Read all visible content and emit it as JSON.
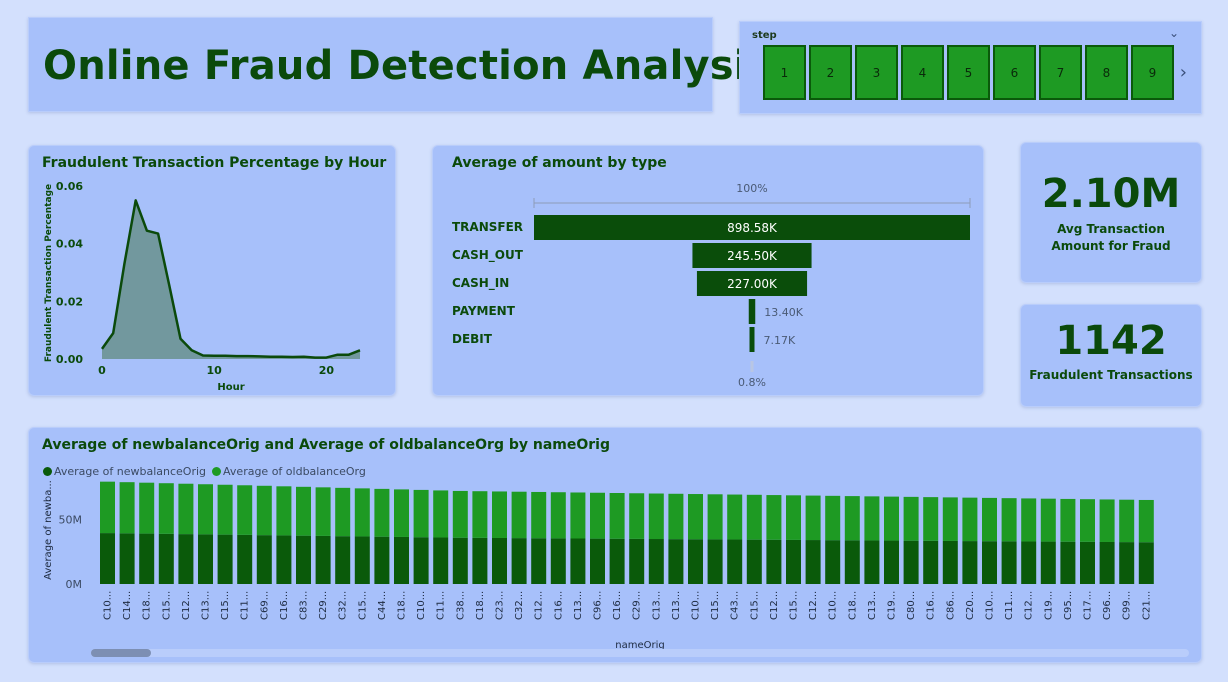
{
  "header": {
    "title": "Online Fraud Detection Analysis"
  },
  "slicer": {
    "label": "step",
    "items": [
      "1",
      "2",
      "3",
      "4",
      "5",
      "6",
      "7",
      "8",
      "9"
    ],
    "chevron_icon": "chevron-down-icon",
    "next_icon": "chevron-right-icon"
  },
  "kpis": {
    "avg_amount": {
      "value": "2.10M",
      "label": "Avg Transaction Amount for Fraud"
    },
    "fraud_count": {
      "value": "1142",
      "label": "Fraudulent Transactions"
    }
  },
  "colors": {
    "dark_green": "#0b4a0b",
    "mid_green": "#1e9a23",
    "line_fill": "#6d9394",
    "card_bg": "#a7c0fa"
  },
  "chart_data": [
    {
      "type": "area",
      "title": "Fraudulent Transaction Percentage by Hour",
      "xlabel": "Hour",
      "ylabel": "Fraudulent Transaction Percentage",
      "xlim": [
        0,
        23
      ],
      "ylim": [
        0,
        0.06
      ],
      "xticks": [
        "0",
        "10",
        "20"
      ],
      "yticks": [
        "0.00",
        "0.02",
        "0.04",
        "0.06"
      ],
      "x": [
        0,
        1,
        2,
        3,
        4,
        5,
        6,
        7,
        8,
        9,
        10,
        11,
        12,
        13,
        14,
        15,
        16,
        17,
        18,
        19,
        20,
        21,
        22,
        23
      ],
      "values": [
        0.0035,
        0.009,
        0.033,
        0.055,
        0.0445,
        0.0435,
        0.0255,
        0.007,
        0.003,
        0.0012,
        0.0011,
        0.0011,
        0.001,
        0.001,
        0.0009,
        0.0008,
        0.0008,
        0.0007,
        0.0008,
        0.0005,
        0.0005,
        0.0015,
        0.0015,
        0.003
      ]
    },
    {
      "type": "bar",
      "subtype": "funnel",
      "title": "Average of amount by type",
      "top_label": "100%",
      "bottom_label": "0.8%",
      "categories": [
        "TRANSFER",
        "CASH_OUT",
        "CASH_IN",
        "PAYMENT",
        "DEBIT"
      ],
      "values": [
        898580,
        245500,
        227000,
        13400,
        7170
      ],
      "data_labels": [
        "898.58K",
        "245.50K",
        "227.00K",
        "13.40K",
        "7.17K"
      ]
    },
    {
      "type": "bar",
      "subtype": "stacked",
      "title": "Average of newbalanceOrig and Average of oldbalanceOrg by nameOrig",
      "xlabel": "nameOrig",
      "ylabel": "Average of newba...",
      "yticks": [
        "0M",
        "50M"
      ],
      "ylim": [
        0,
        90000000
      ],
      "categories": [
        "C10...",
        "C14...",
        "C18...",
        "C15...",
        "C12...",
        "C13...",
        "C15...",
        "C11...",
        "C69...",
        "C16...",
        "C83...",
        "C29...",
        "C32...",
        "C15...",
        "C44...",
        "C18...",
        "C10...",
        "C11...",
        "C38...",
        "C18...",
        "C23...",
        "C32...",
        "C12...",
        "C16...",
        "C13...",
        "C96...",
        "C16...",
        "C29...",
        "C13...",
        "C13...",
        "C10...",
        "C15...",
        "C43...",
        "C15...",
        "C12...",
        "C15...",
        "C12...",
        "C10...",
        "C18...",
        "C13...",
        "C19...",
        "C80...",
        "C16...",
        "C86...",
        "C20...",
        "C10...",
        "C11...",
        "C12...",
        "C19...",
        "C95...",
        "C17...",
        "C96...",
        "C99...",
        "C21..."
      ],
      "series": [
        {
          "name": "Average of newbalanceOrig",
          "color": "#0a5a0a",
          "values": [
            39500000,
            39300000,
            39100000,
            38900000,
            38700000,
            38500000,
            38300000,
            38100000,
            37900000,
            37700000,
            37500000,
            37300000,
            37100000,
            36900000,
            36700000,
            36500000,
            36300000,
            36100000,
            35900000,
            35800000,
            35700000,
            35600000,
            35500000,
            35400000,
            35300000,
            35200000,
            35100000,
            35000000,
            34900000,
            34800000,
            34700000,
            34600000,
            34500000,
            34400000,
            34300000,
            34200000,
            34100000,
            34000000,
            33900000,
            33800000,
            33700000,
            33600000,
            33500000,
            33400000,
            33300000,
            33200000,
            33100000,
            33000000,
            32900000,
            32800000,
            32700000,
            32600000,
            32500000,
            32400000
          ]
        },
        {
          "name": "Average of oldbalanceOrg",
          "color": "#1e9a23",
          "values": [
            39900000,
            39700000,
            39500000,
            39300000,
            39100000,
            38900000,
            38700000,
            38500000,
            38300000,
            38100000,
            37900000,
            37700000,
            37500000,
            37300000,
            37100000,
            36900000,
            36700000,
            36500000,
            36300000,
            36200000,
            36100000,
            36000000,
            35900000,
            35800000,
            35700000,
            35600000,
            35500000,
            35400000,
            35300000,
            35200000,
            35100000,
            35000000,
            34900000,
            34800000,
            34700000,
            34600000,
            34500000,
            34400000,
            34300000,
            34200000,
            34100000,
            34000000,
            33900000,
            33800000,
            33700000,
            33600000,
            33500000,
            33400000,
            33300000,
            33200000,
            33100000,
            33000000,
            32900000,
            32800000
          ]
        }
      ]
    }
  ]
}
